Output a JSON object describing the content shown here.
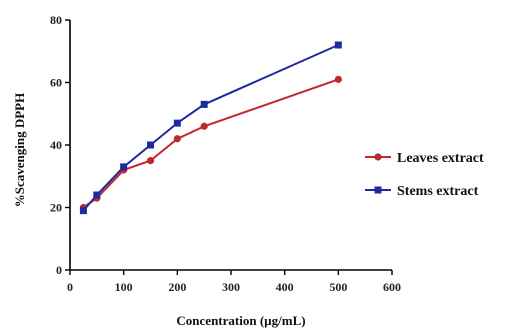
{
  "chart_data": {
    "type": "line",
    "title": "",
    "xlabel": "Concentration (µg/mL)",
    "ylabel": "%Scavenging DPPH",
    "xlim": [
      0,
      600
    ],
    "ylim": [
      0,
      80
    ],
    "x_ticks": [
      0,
      100,
      200,
      300,
      400,
      500,
      600
    ],
    "y_ticks": [
      0,
      20,
      40,
      60,
      80
    ],
    "x_tick_labels": [
      "0",
      "100",
      "200",
      "300",
      "400",
      "500",
      "600"
    ],
    "y_tick_labels": [
      "0",
      "20",
      "40",
      "60",
      "80"
    ],
    "grid": false,
    "legend_position": "right",
    "series": [
      {
        "name": "Leaves extract",
        "color": "#c0282d",
        "marker": "circle",
        "x": [
          25,
          50,
          100,
          150,
          200,
          250,
          500
        ],
        "y": [
          20,
          23,
          32,
          35,
          42,
          46,
          61
        ]
      },
      {
        "name": "Stems extract",
        "color": "#1f2aa0",
        "marker": "square",
        "x": [
          25,
          50,
          100,
          150,
          200,
          250,
          500
        ],
        "y": [
          19,
          24,
          33,
          40,
          47,
          53,
          72
        ]
      }
    ]
  }
}
